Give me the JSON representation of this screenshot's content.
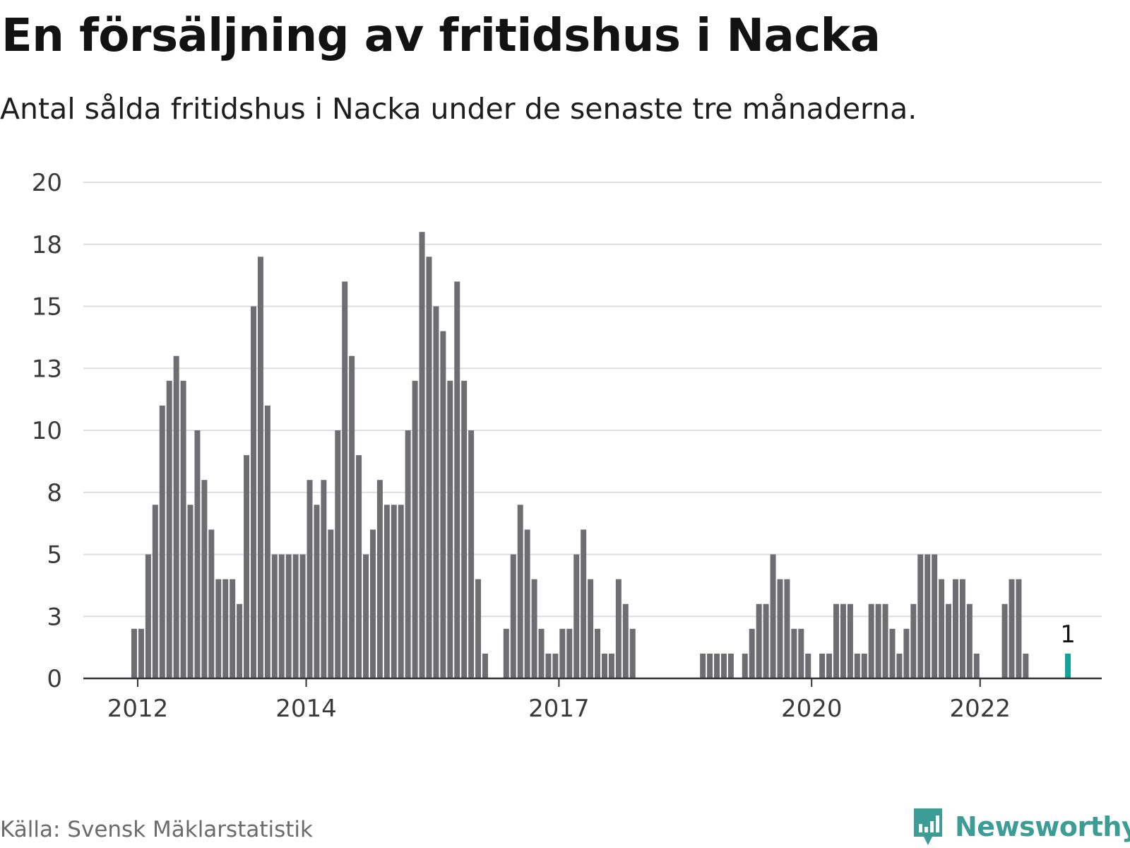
{
  "title": "En försäljning av fritidshus i Nacka",
  "subtitle": "Antal sålda fritidshus i Nacka under de senaste tre månaderna.",
  "source": "Källa: Svensk Mäklarstatistik",
  "brand": {
    "name": "Newsworthy",
    "icon": "newsworthy-logo-icon",
    "color": "#3c9d96"
  },
  "colors": {
    "bar": "#6e6d72",
    "highlight": "#12a39a",
    "grid": "#dddddd",
    "axis": "#333333"
  },
  "chart_data": {
    "type": "bar",
    "title": "En försäljning av fritidshus i Nacka",
    "xlabel": "",
    "ylabel": "",
    "ylim": [
      0,
      20
    ],
    "yticks": [
      {
        "value": 0,
        "label": "0"
      },
      {
        "value": 2.5,
        "label": "3"
      },
      {
        "value": 5,
        "label": "5"
      },
      {
        "value": 7.5,
        "label": "8"
      },
      {
        "value": 10,
        "label": "10"
      },
      {
        "value": 12.5,
        "label": "13"
      },
      {
        "value": 15,
        "label": "15"
      },
      {
        "value": 17.5,
        "label": "18"
      },
      {
        "value": 20,
        "label": "20"
      }
    ],
    "xticks": [
      {
        "label": "2012",
        "month": "2012-01"
      },
      {
        "label": "2014",
        "month": "2014-01"
      },
      {
        "label": "2017",
        "month": "2017-01"
      },
      {
        "label": "2020",
        "month": "2020-01"
      },
      {
        "label": "2022",
        "month": "2022-01"
      }
    ],
    "grid": true,
    "annotations": [
      {
        "month": "2023-01",
        "text": "1"
      }
    ],
    "highlight_month": "2023-01",
    "months": [
      "2011-12",
      "2012-01",
      "2012-02",
      "2012-03",
      "2012-04",
      "2012-05",
      "2012-06",
      "2012-07",
      "2012-08",
      "2012-09",
      "2012-10",
      "2012-11",
      "2012-12",
      "2013-01",
      "2013-02",
      "2013-03",
      "2013-04",
      "2013-05",
      "2013-06",
      "2013-07",
      "2013-08",
      "2013-09",
      "2013-10",
      "2013-11",
      "2013-12",
      "2014-01",
      "2014-02",
      "2014-03",
      "2014-04",
      "2014-05",
      "2014-06",
      "2014-07",
      "2014-08",
      "2014-09",
      "2014-10",
      "2014-11",
      "2014-12",
      "2015-01",
      "2015-02",
      "2015-03",
      "2015-04",
      "2015-05",
      "2015-06",
      "2015-07",
      "2015-08",
      "2015-09",
      "2015-10",
      "2015-11",
      "2015-12",
      "2016-01",
      "2016-02",
      "2016-03",
      "2016-04",
      "2016-05",
      "2016-06",
      "2016-07",
      "2016-08",
      "2016-09",
      "2016-10",
      "2016-11",
      "2016-12",
      "2017-01",
      "2017-02",
      "2017-03",
      "2017-04",
      "2017-05",
      "2017-06",
      "2017-07",
      "2017-08",
      "2017-09",
      "2017-10",
      "2017-11",
      "2017-12",
      "2018-01",
      "2018-02",
      "2018-03",
      "2018-04",
      "2018-05",
      "2018-06",
      "2018-07",
      "2018-08",
      "2018-09",
      "2018-10",
      "2018-11",
      "2018-12",
      "2019-01",
      "2019-02",
      "2019-03",
      "2019-04",
      "2019-05",
      "2019-06",
      "2019-07",
      "2019-08",
      "2019-09",
      "2019-10",
      "2019-11",
      "2019-12",
      "2020-01",
      "2020-02",
      "2020-03",
      "2020-04",
      "2020-05",
      "2020-06",
      "2020-07",
      "2020-08",
      "2020-09",
      "2020-10",
      "2020-11",
      "2020-12",
      "2021-01",
      "2021-02",
      "2021-03",
      "2021-04",
      "2021-05",
      "2021-06",
      "2021-07",
      "2021-08",
      "2021-09",
      "2021-10",
      "2021-11",
      "2021-12",
      "2022-01",
      "2022-02",
      "2022-03",
      "2022-04",
      "2022-05",
      "2022-06",
      "2022-07",
      "2022-08",
      "2022-09",
      "2022-10",
      "2022-11",
      "2022-12",
      "2023-01"
    ],
    "values": [
      2,
      2,
      5,
      7,
      11,
      12,
      13,
      12,
      7,
      10,
      8,
      6,
      4,
      4,
      4,
      3,
      9,
      15,
      17,
      11,
      5,
      5,
      5,
      5,
      5,
      8,
      7,
      8,
      6,
      10,
      16,
      13,
      9,
      5,
      6,
      8,
      7,
      7,
      7,
      10,
      12,
      18,
      17,
      15,
      14,
      12,
      16,
      12,
      10,
      4,
      1,
      0,
      0,
      2,
      5,
      7,
      6,
      4,
      2,
      1,
      1,
      2,
      2,
      5,
      6,
      4,
      2,
      1,
      1,
      4,
      3,
      2,
      0,
      0,
      0,
      0,
      0,
      0,
      0,
      0,
      0,
      1,
      1,
      1,
      1,
      1,
      0,
      1,
      2,
      3,
      3,
      5,
      4,
      4,
      2,
      2,
      1,
      0,
      1,
      1,
      3,
      3,
      3,
      1,
      1,
      3,
      3,
      3,
      2,
      1,
      2,
      3,
      5,
      5,
      5,
      4,
      3,
      4,
      4,
      3,
      1,
      0,
      0,
      0,
      3,
      4,
      4,
      1,
      0,
      0,
      0,
      0,
      0,
      1
    ]
  }
}
